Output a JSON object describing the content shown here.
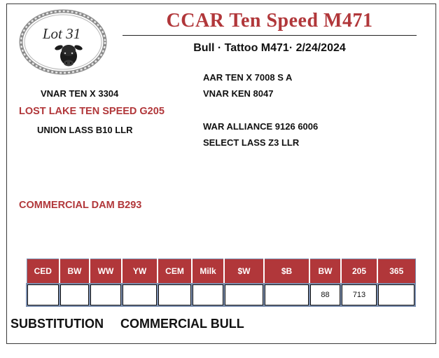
{
  "lot": {
    "label": "Lot 31"
  },
  "header": {
    "title": "CCAR Ten Speed M471",
    "subtitle": "Bull · Tattoo M471· 2/24/2024"
  },
  "pedigree": {
    "sire": "LOST LAKE TEN SPEED G205",
    "sire_sire": "VNAR TEN X 3304",
    "sire_dam": "UNION LASS B10 LLR",
    "sire_sire_sire": "AAR TEN X 7008 S A",
    "sire_sire_dam": "VNAR KEN 8047",
    "sire_dam_sire": "WAR ALLIANCE 9126 6006",
    "sire_dam_dam": "SELECT LASS Z3 LLR",
    "dam": "COMMERCIAL DAM B293"
  },
  "epd_table": {
    "headers": [
      "CED",
      "BW",
      "WW",
      "YW",
      "CEM",
      "Milk",
      "$W",
      "$B",
      "BW",
      "205",
      "365"
    ],
    "values": [
      "",
      "",
      "",
      "",
      "",
      "",
      "",
      "",
      "88",
      "713",
      ""
    ]
  },
  "footer": {
    "substitution": "SUBSTITUTION",
    "type": "COMMERCIAL BULL"
  },
  "colors": {
    "accent": "#b1373a",
    "grid": "#7c8fb0",
    "text": "#111111"
  },
  "icons": {
    "logo": "rope-circle-bull-logo"
  }
}
